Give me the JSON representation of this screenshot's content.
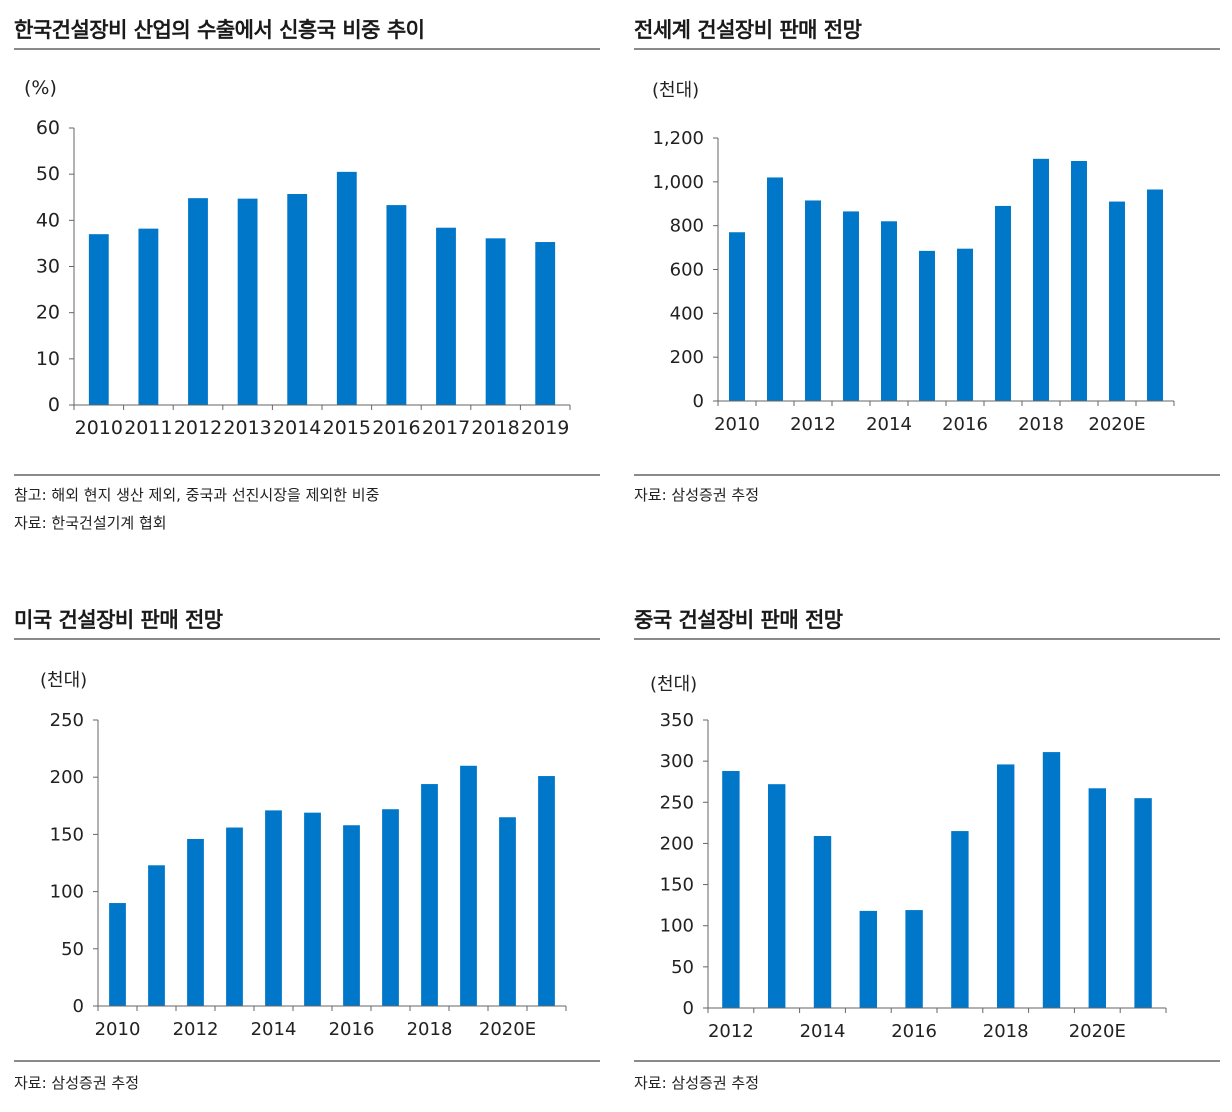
{
  "bar_color": "#0077C8",
  "panels": [
    {
      "title": "한국건설장비 산업의 수출에서 신흥국 비중 추이",
      "notes": [
        "참고: 해외 현지 생산 제외, 중국과 선진시장을 제외한 비중",
        "자료: 한국건설기계 협회"
      ]
    },
    {
      "title": "전세계 건설장비 판매 전망",
      "notes": [
        "자료: 삼성증권 추정"
      ]
    },
    {
      "title": "미국 건설장비 판매 전망",
      "notes": [
        "자료: 삼성증권 추정"
      ]
    },
    {
      "title": "중국 건설장비 판매 전망",
      "notes": [
        "자료: 삼성증권 추정"
      ]
    }
  ],
  "chart_data": [
    {
      "type": "bar",
      "unit": "(%)",
      "categories": [
        "2010",
        "2011",
        "2012",
        "2013",
        "2014",
        "2015",
        "2016",
        "2017",
        "2018",
        "2019"
      ],
      "values": [
        37,
        38.2,
        44.8,
        44.7,
        45.7,
        50.5,
        43.3,
        38.4,
        36.1,
        35.3
      ],
      "ylim": [
        0,
        60
      ],
      "yticks": [
        "0",
        "10",
        "20",
        "30",
        "40",
        "50",
        "60"
      ],
      "xtick_labels": [
        "2010",
        "2011",
        "2012",
        "2013",
        "2014",
        "2015",
        "2016",
        "2017",
        "2018",
        "2019"
      ]
    },
    {
      "type": "bar",
      "unit": "(천대)",
      "categories": [
        "2010",
        "2011",
        "2012",
        "2013",
        "2014",
        "2015",
        "2016",
        "2017",
        "2018",
        "2019",
        "2020E",
        "2021E"
      ],
      "values": [
        770,
        1020,
        915,
        865,
        820,
        685,
        695,
        890,
        1105,
        1095,
        910,
        965
      ],
      "ylim": [
        0,
        1200
      ],
      "yticks": [
        "0",
        "200",
        "400",
        "600",
        "800",
        "1,000",
        "1,200"
      ],
      "xtick_labels": [
        "2010",
        "",
        "2012",
        "",
        "2014",
        "",
        "2016",
        "",
        "2018",
        "",
        "2020E",
        ""
      ]
    },
    {
      "type": "bar",
      "unit": "(천대)",
      "categories": [
        "2010",
        "2011",
        "2012",
        "2013",
        "2014",
        "2015",
        "2016",
        "2017",
        "2018",
        "2019",
        "2020E",
        "2021E"
      ],
      "values": [
        90,
        123,
        146,
        156,
        171,
        169,
        158,
        172,
        194,
        210,
        165,
        201
      ],
      "ylim": [
        0,
        250
      ],
      "yticks": [
        "0",
        "50",
        "100",
        "150",
        "200",
        "250"
      ],
      "xtick_labels": [
        "2010",
        "",
        "2012",
        "",
        "2014",
        "",
        "2016",
        "",
        "2018",
        "",
        "2020E",
        ""
      ]
    },
    {
      "type": "bar",
      "unit": "(천대)",
      "categories": [
        "2012",
        "2013",
        "2014",
        "2015",
        "2016",
        "2017",
        "2018",
        "2019",
        "2020E",
        "2021E"
      ],
      "values": [
        288,
        272,
        209,
        118,
        119,
        215,
        296,
        311,
        267,
        255
      ],
      "ylim": [
        0,
        350
      ],
      "yticks": [
        "0",
        "50",
        "100",
        "150",
        "200",
        "250",
        "300",
        "350"
      ],
      "xtick_labels": [
        "2012",
        "",
        "2014",
        "",
        "2016",
        "",
        "2018",
        "",
        "2020E",
        ""
      ]
    }
  ]
}
